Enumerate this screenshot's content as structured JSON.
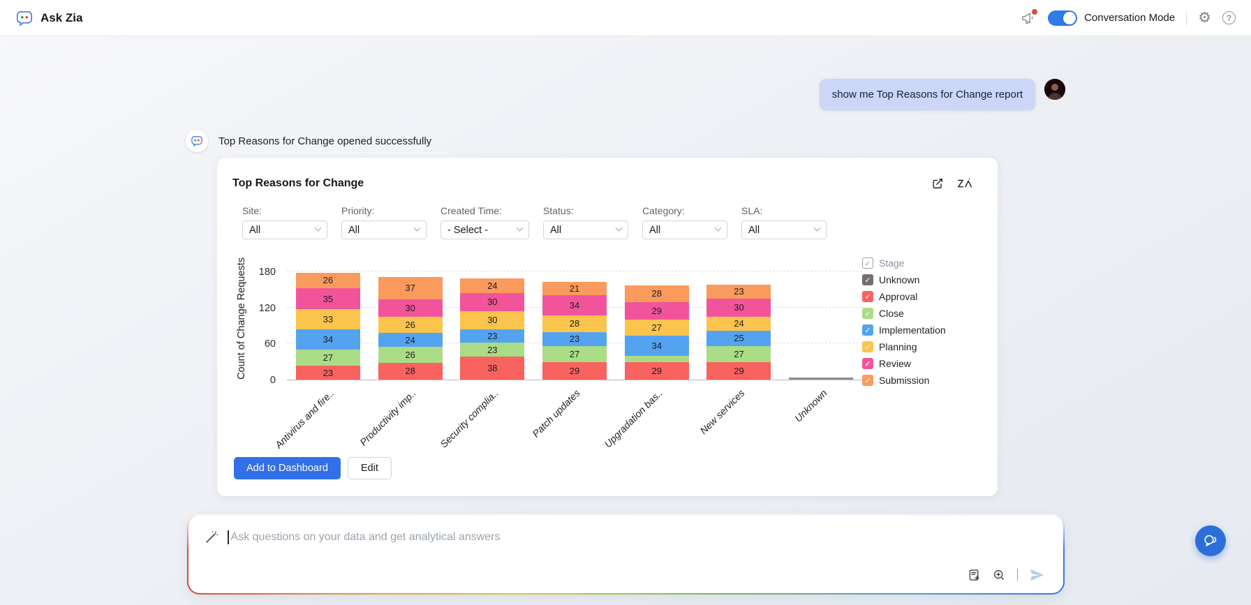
{
  "header": {
    "app_title": "Ask Zia",
    "conversation_mode_label": "Conversation Mode",
    "conversation_mode_on": true
  },
  "chat": {
    "user_message": "show me Top Reasons for Change report",
    "bot_message": "Top Reasons for Change opened successfully"
  },
  "report": {
    "title": "Top Reasons for Change",
    "filters": [
      {
        "label": "Site:",
        "value": "All"
      },
      {
        "label": "Priority:",
        "value": "All"
      },
      {
        "label": "Created Time:",
        "value": "- Select -"
      },
      {
        "label": "Status:",
        "value": "All"
      },
      {
        "label": "Category:",
        "value": "All"
      },
      {
        "label": "SLA:",
        "value": "All"
      }
    ],
    "actions": {
      "add_to_dashboard": "Add to Dashboard",
      "edit": "Edit"
    }
  },
  "chart_data": {
    "type": "bar",
    "stacked": true,
    "title": "Top Reasons for Change",
    "xlabel": "",
    "ylabel": "Count of Change Requests",
    "yticks": [
      0,
      60,
      120,
      180
    ],
    "ylim": [
      0,
      200
    ],
    "grid": true,
    "legend_position": "right",
    "legend_title": "Stage",
    "label_min": 12,
    "categories": [
      "Antivirus and fire..",
      "Productivity imp..",
      "Security complia..",
      "Patch updates",
      "Upgradation bas..",
      "New services",
      "Unknown"
    ],
    "series": [
      {
        "name": "Approval",
        "color": "#f8625f",
        "values": [
          23,
          28,
          38,
          29,
          29,
          29,
          0
        ]
      },
      {
        "name": "Close",
        "color": "#abdc86",
        "values": [
          27,
          26,
          23,
          27,
          10,
          27,
          0
        ]
      },
      {
        "name": "Implementation",
        "color": "#54a3f0",
        "values": [
          34,
          24,
          23,
          23,
          34,
          25,
          0
        ]
      },
      {
        "name": "Planning",
        "color": "#fbc44d",
        "values": [
          33,
          26,
          30,
          28,
          27,
          24,
          0
        ]
      },
      {
        "name": "Review",
        "color": "#f2549b",
        "values": [
          35,
          30,
          30,
          34,
          29,
          30,
          0
        ]
      },
      {
        "name": "Submission",
        "color": "#fa9a5c",
        "values": [
          26,
          37,
          24,
          21,
          28,
          23,
          0
        ]
      },
      {
        "name": "Unknown",
        "color": "#8f8f8f",
        "values": [
          0,
          0,
          0,
          0,
          0,
          0,
          4
        ]
      }
    ]
  },
  "legend": {
    "title": "Stage",
    "items": [
      {
        "label": "Unknown",
        "color": "#756d71",
        "checked": true
      },
      {
        "label": "Approval",
        "color": "#f8625f",
        "checked": true
      },
      {
        "label": "Close",
        "color": "#abdc86",
        "checked": true
      },
      {
        "label": "Implementation",
        "color": "#54a3f0",
        "checked": true
      },
      {
        "label": "Planning",
        "color": "#fbc44d",
        "checked": true
      },
      {
        "label": "Review",
        "color": "#f2549b",
        "checked": true
      },
      {
        "label": "Submission",
        "color": "#fa9a5c",
        "checked": true
      }
    ]
  },
  "composer": {
    "placeholder": "Ask questions on your data and get analytical answers"
  },
  "colors": {
    "accent_blue": "#2e7ce5",
    "primary_button": "#3170e8",
    "send_idle": "#b9cde8",
    "fab": "#2c6fdb",
    "notification_dot": "#e2443c"
  },
  "icons": [
    "ask-zia-logo",
    "megaphone-icon",
    "gear-icon",
    "help-icon",
    "external-link-icon",
    "zia-icon",
    "wand-icon",
    "report-request-icon",
    "zoom-in-icon",
    "send-icon",
    "chat-bubbles-icon"
  ]
}
